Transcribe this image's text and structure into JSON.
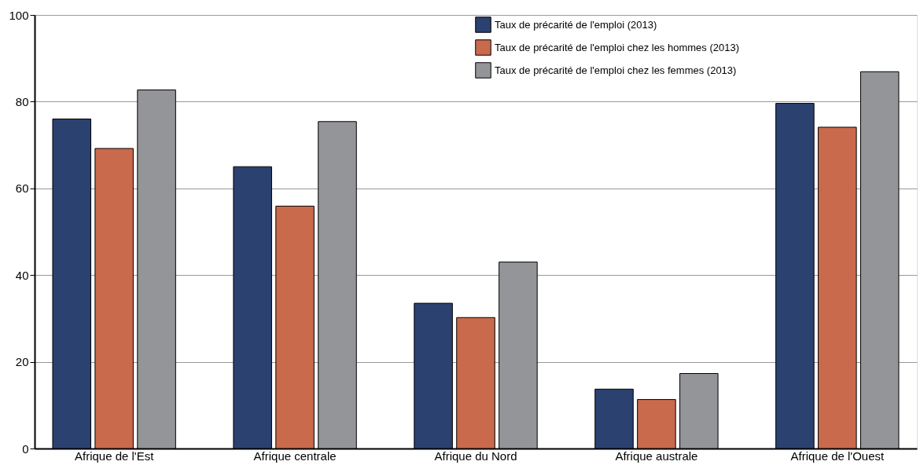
{
  "chart_data": {
    "type": "bar",
    "categories": [
      "Afrique de l'Est",
      "Afrique centrale",
      "Afrique du Nord",
      "Afrique australe",
      "Afrique de l'Ouest"
    ],
    "series": [
      {
        "name": "Taux de précarité de l'emploi (2013)",
        "color": "#2b4170",
        "values": [
          76,
          65,
          33.5,
          13.7,
          79.6
        ]
      },
      {
        "name": "Taux de précarité de l'emploi chez les hommes (2013)",
        "color": "#c96a4d",
        "values": [
          69.2,
          55.9,
          30.2,
          11.3,
          74.1
        ]
      },
      {
        "name": "Taux de précarité de l'emploi chez les femmes (2013)",
        "color": "#939598",
        "values": [
          82.7,
          75.4,
          43,
          17.3,
          86.9
        ]
      }
    ],
    "ylim": [
      0,
      100
    ],
    "yticks": [
      0,
      20,
      40,
      60,
      80,
      100
    ],
    "grid": "y",
    "legend": "top right"
  }
}
